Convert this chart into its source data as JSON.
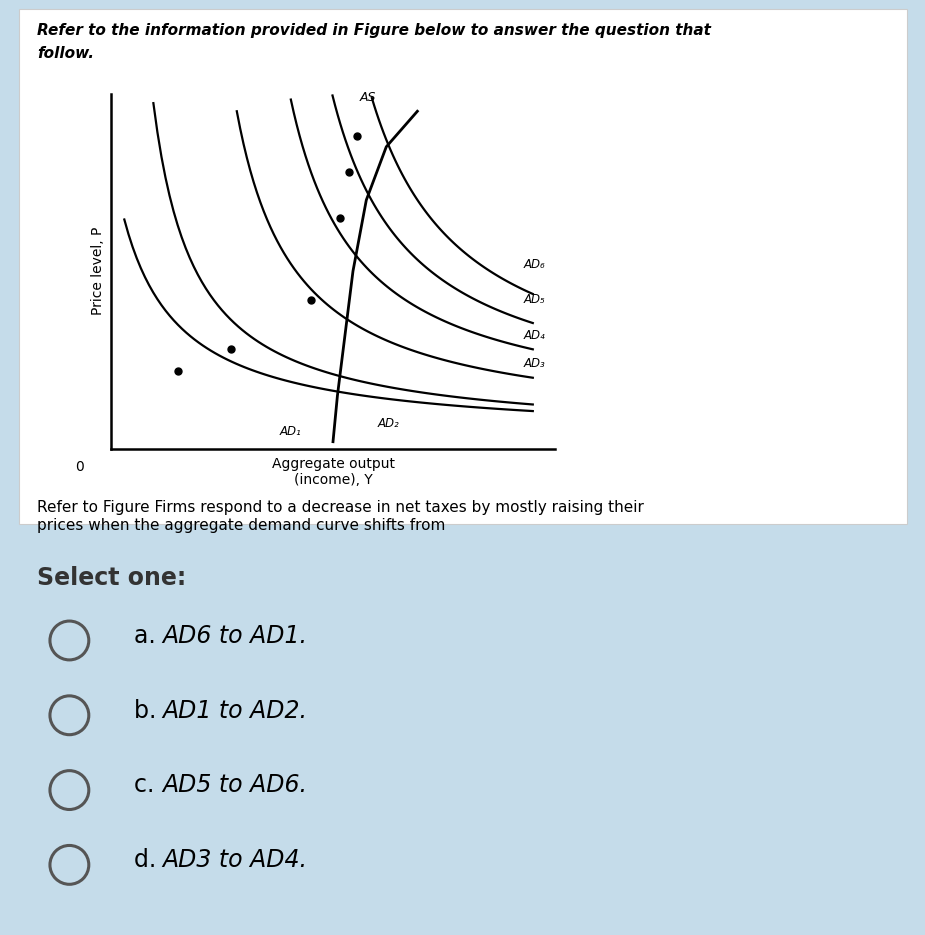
{
  "bg_color": "#c5dcea",
  "white_box_color": "#ffffff",
  "title_line1": "Refer to the information provided in Figure below to answer the question that",
  "title_line2": "follow.",
  "question_text": "Refer to Figure Firms respond to a decrease in net taxes by mostly raising their\nprices when the aggregate demand curve shifts from",
  "select_label": "Select one:",
  "options": [
    [
      "a. ",
      "AD6 to AD1."
    ],
    [
      "b. ",
      "AD1 to AD2."
    ],
    [
      "c. ",
      "AD5 to AD6."
    ],
    [
      "d. ",
      "AD3 to AD4."
    ]
  ],
  "graph_ylabel": "Price level, P",
  "graph_xlabel": "Aggregate output\n(income), Y",
  "as_label": "AS",
  "curve_color": "#000000",
  "ad_label_positions": [
    [
      9.3,
      5.2,
      "AD₆"
    ],
    [
      9.3,
      4.2,
      "AD₅"
    ],
    [
      9.3,
      3.2,
      "AD₄"
    ],
    [
      9.3,
      2.4,
      "AD₃"
    ],
    [
      6.0,
      0.7,
      "AD₂"
    ],
    [
      3.8,
      0.5,
      "AD₁"
    ]
  ]
}
